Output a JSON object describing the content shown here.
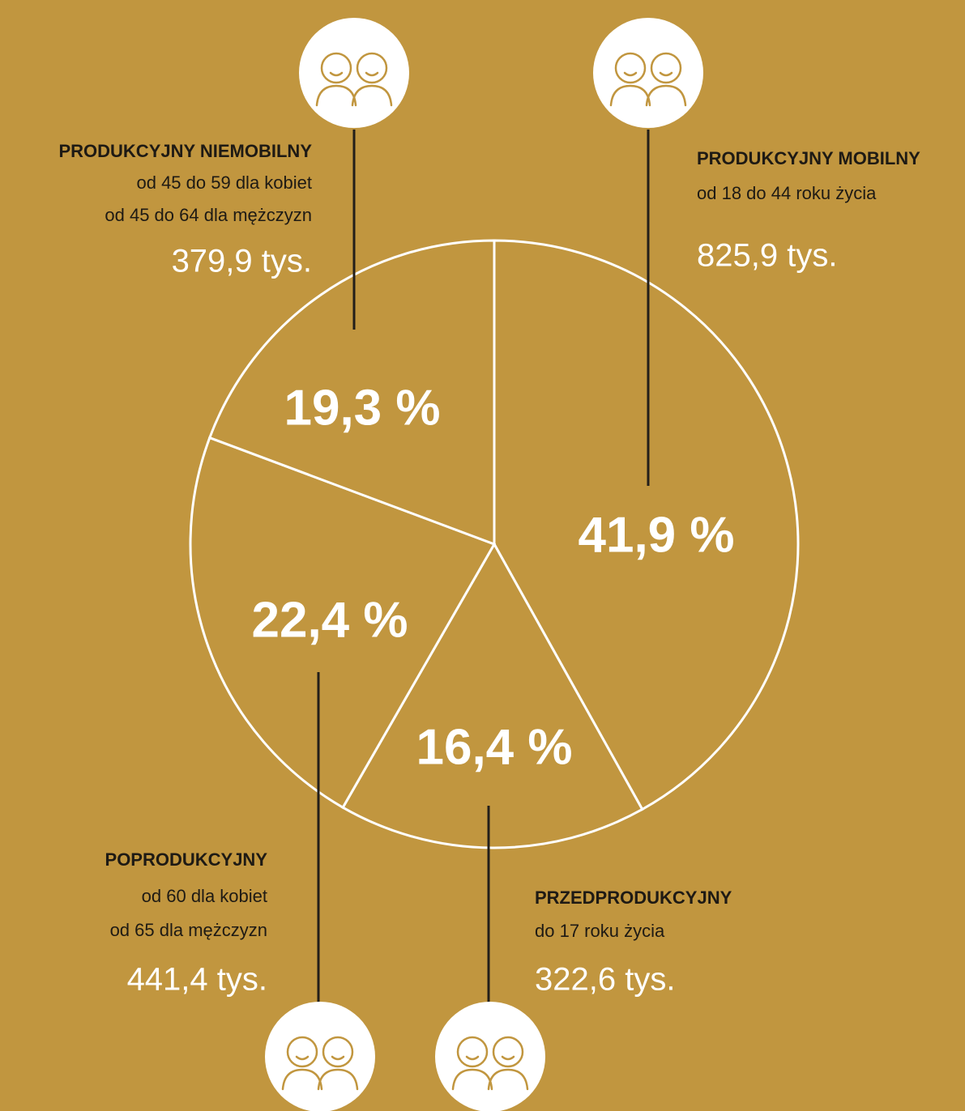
{
  "chart_data": {
    "type": "pie",
    "categories": [
      "PRODUKCYJNY MOBILNY",
      "PRZEDPRODUKCYJNY",
      "POPRODUKCYJNY",
      "PRODUKCYJNY NIEMOBILNY"
    ],
    "values": [
      41.9,
      16.4,
      22.4,
      19.3
    ],
    "value_labels": [
      "41,9 %",
      "16,4 %",
      "22,4 %",
      "19,3 %"
    ],
    "descriptions": [
      [
        "od 18 do 44 roku życia"
      ],
      [
        "do 17 roku życia"
      ],
      [
        "od 60 dla kobiet",
        "od 65 dla mężczyzn"
      ],
      [
        "od 45 do 59 dla kobiet",
        "od 45 do 64 dla mężczyzn"
      ]
    ],
    "count_labels": [
      "825,9 tys.",
      "322,6 tys.",
      "441,4 tys.",
      "379,9 tys."
    ],
    "color": "#c1963f"
  }
}
